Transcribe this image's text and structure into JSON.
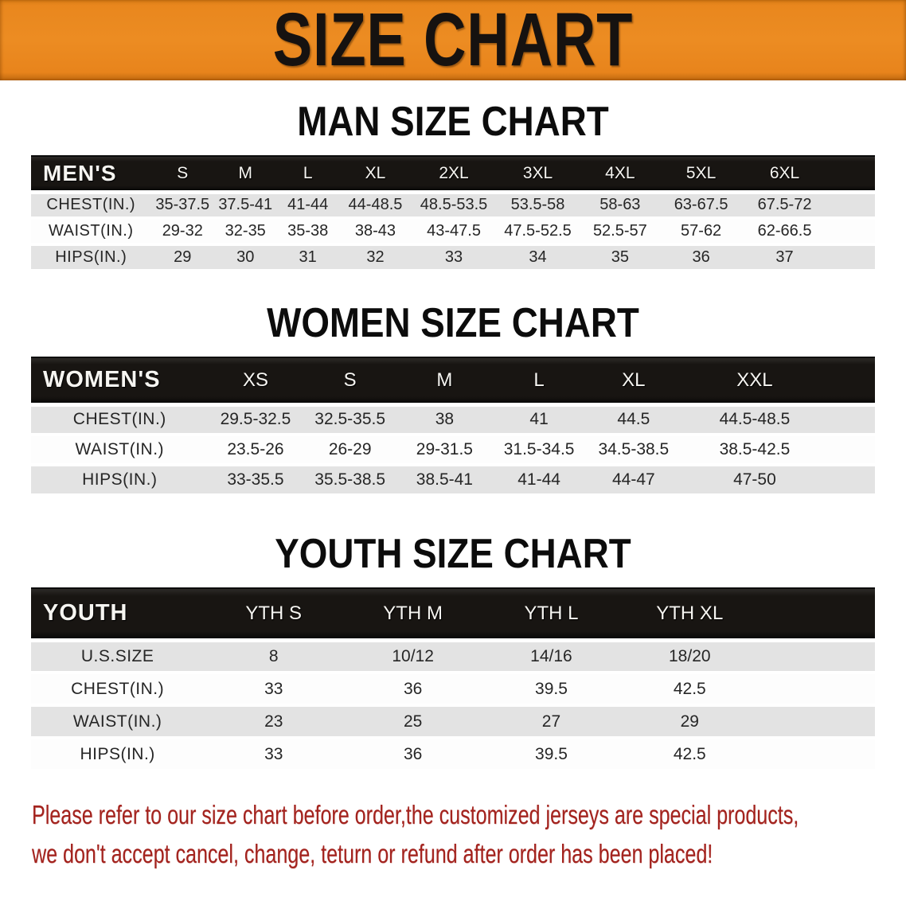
{
  "banner": {
    "title": "SIZE CHART"
  },
  "sections": [
    {
      "heading": "MAN SIZE CHART",
      "label": "MEN'S",
      "columns": [
        "S",
        "M",
        "L",
        "XL",
        "2XL",
        "3XL",
        "4XL",
        "5XL",
        "6XL"
      ],
      "rows": [
        {
          "label": "CHEST(IN.)",
          "values": [
            "35-37.5",
            "37.5-41",
            "41-44",
            "44-48.5",
            "48.5-53.5",
            "53.5-58",
            "58-63",
            "63-67.5",
            "67.5-72"
          ]
        },
        {
          "label": "WAIST(IN.)",
          "values": [
            "29-32",
            "32-35",
            "35-38",
            "38-43",
            "43-47.5",
            "47.5-52.5",
            "52.5-57",
            "57-62",
            "62-66.5"
          ]
        },
        {
          "label": "HIPS(IN.)",
          "values": [
            "29",
            "30",
            "31",
            "32",
            "33",
            "34",
            "35",
            "36",
            "37"
          ]
        }
      ]
    },
    {
      "heading": "WOMEN SIZE CHART",
      "label": "WOMEN'S",
      "columns": [
        "XS",
        "S",
        "M",
        "L",
        "XL",
        "XXL"
      ],
      "rows": [
        {
          "label": "CHEST(IN.)",
          "values": [
            "29.5-32.5",
            "32.5-35.5",
            "38",
            "41",
            "44.5",
            "44.5-48.5"
          ]
        },
        {
          "label": "WAIST(IN.)",
          "values": [
            "23.5-26",
            "26-29",
            "29-31.5",
            "31.5-34.5",
            "34.5-38.5",
            "38.5-42.5"
          ]
        },
        {
          "label": "HIPS(IN.)",
          "values": [
            "33-35.5",
            "35.5-38.5",
            "38.5-41",
            "41-44",
            "44-47",
            "47-50"
          ]
        }
      ]
    },
    {
      "heading": "YOUTH SIZE CHART",
      "label": "YOUTH",
      "columns": [
        "YTH S",
        "YTH M",
        "YTH L",
        "YTH XL"
      ],
      "rows": [
        {
          "label": "U.S.SIZE",
          "values": [
            "8",
            "10/12",
            "14/16",
            "18/20"
          ]
        },
        {
          "label": "CHEST(IN.)",
          "values": [
            "33",
            "36",
            "39.5",
            "42.5"
          ]
        },
        {
          "label": "WAIST(IN.)",
          "values": [
            "23",
            "25",
            "27",
            "29"
          ]
        },
        {
          "label": "HIPS(IN.)",
          "values": [
            "33",
            "36",
            "39.5",
            "42.5"
          ]
        }
      ]
    }
  ],
  "disclaimer": {
    "lines": [
      "Please refer to our size chart before order,the customized jerseys are special products,",
      "we don't accept cancel, change, teturn or refund after order has been placed!"
    ]
  },
  "colors": {
    "banner_orange": "#E9871E",
    "header_bar_black": "#181512",
    "row_stripe_gray": "#E3E3E3",
    "disclaimer_red": "#A3231E"
  }
}
